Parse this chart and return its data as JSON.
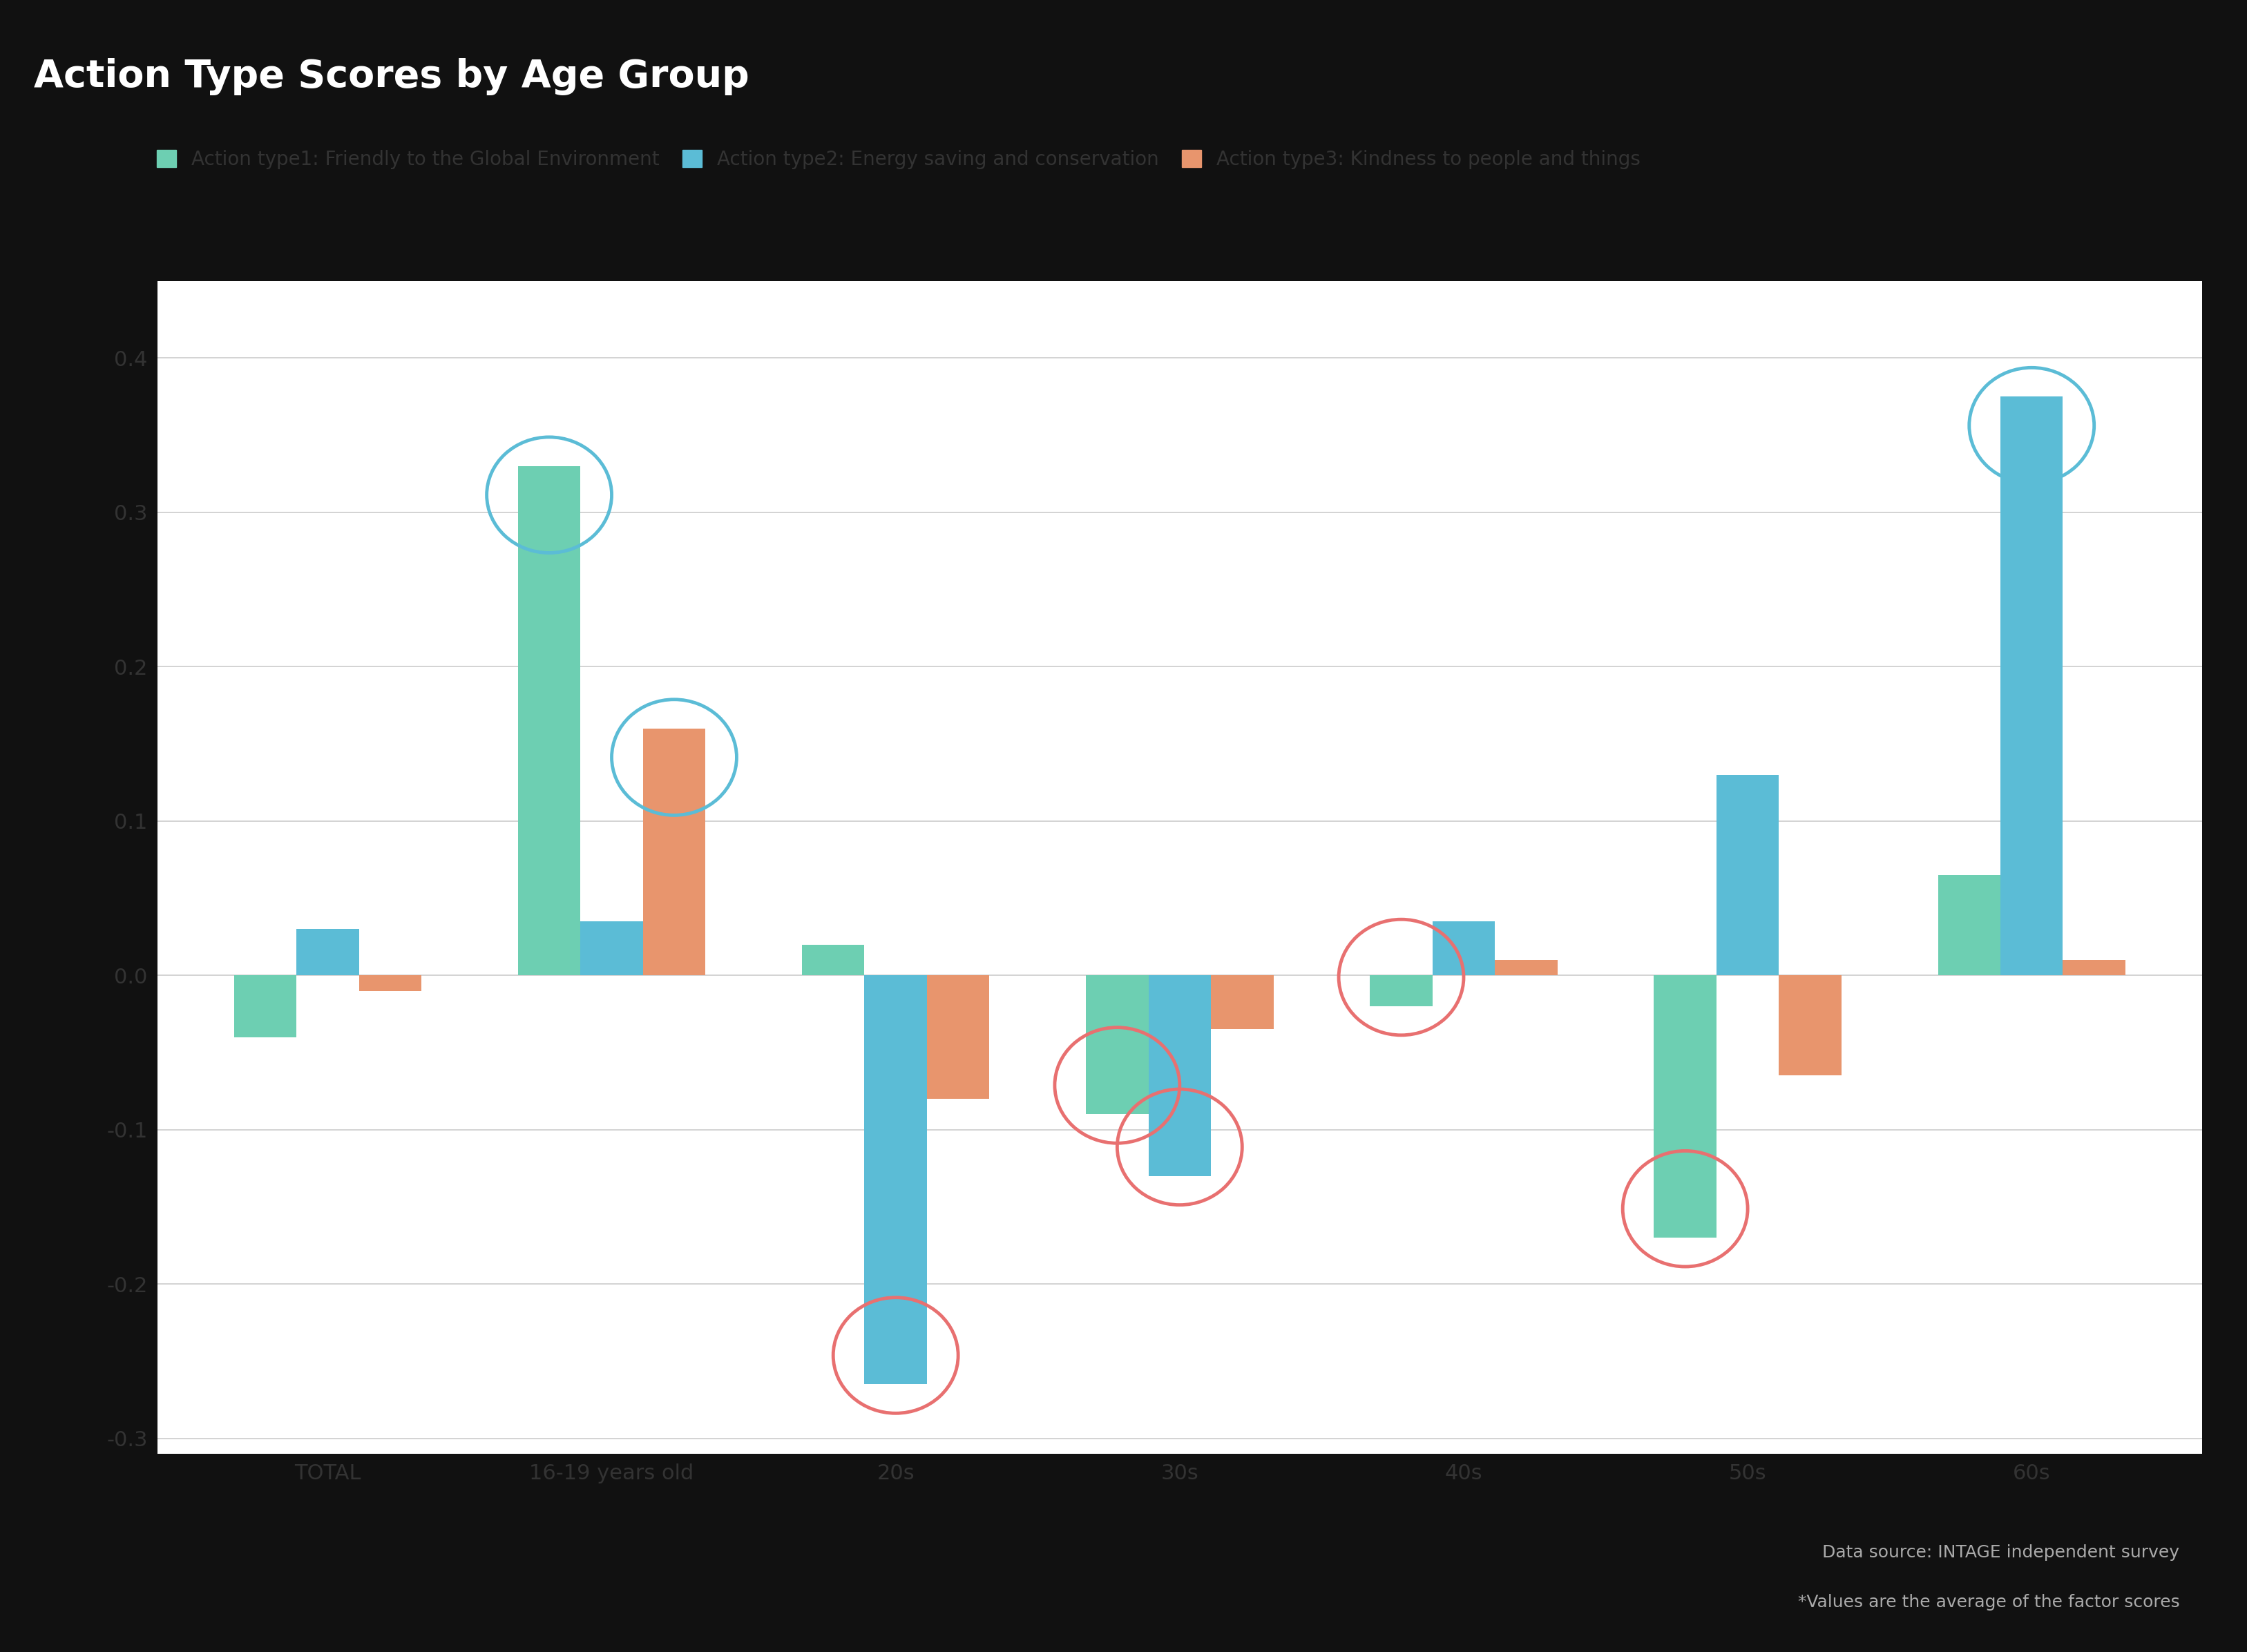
{
  "title": "Action Type Scores by Age Group",
  "title_bg_color": "#111111",
  "chart_bg_color": "#ffffff",
  "bottom_bg_color": "#111111",
  "categories": [
    "TOTAL",
    "16-19 years old",
    "20s",
    "30s",
    "40s",
    "50s",
    "60s"
  ],
  "series": {
    "type1": {
      "label": "Action type1: Friendly to the Global Environment",
      "color": "#6dcfb2",
      "values": [
        -0.04,
        0.33,
        0.02,
        -0.09,
        -0.02,
        -0.17,
        0.065
      ]
    },
    "type2": {
      "label": "Action type2: Energy saving and conservation",
      "color": "#5bbcd6",
      "values": [
        0.03,
        0.035,
        -0.265,
        -0.13,
        0.035,
        0.13,
        0.375
      ]
    },
    "type3": {
      "label": "Action type3: Kindness to people and things",
      "color": "#e8956d",
      "values": [
        -0.01,
        0.16,
        -0.08,
        -0.035,
        0.01,
        -0.065,
        0.01
      ]
    }
  },
  "circles": [
    {
      "series": "type1",
      "cat_idx": 1,
      "color": "#5bbcd6"
    },
    {
      "series": "type3",
      "cat_idx": 1,
      "color": "#5bbcd6"
    },
    {
      "series": "type2",
      "cat_idx": 2,
      "color": "#e87070"
    },
    {
      "series": "type1",
      "cat_idx": 3,
      "color": "#e87070"
    },
    {
      "series": "type2",
      "cat_idx": 3,
      "color": "#e87070"
    },
    {
      "series": "type1",
      "cat_idx": 4,
      "color": "#e87070"
    },
    {
      "series": "type1",
      "cat_idx": 5,
      "color": "#e87070"
    },
    {
      "series": "type2",
      "cat_idx": 6,
      "color": "#5bbcd6"
    }
  ],
  "ylim": [
    -0.31,
    0.45
  ],
  "yticks": [
    -0.3,
    -0.2,
    -0.1,
    0.0,
    0.1,
    0.2,
    0.3,
    0.4
  ],
  "ytick_labels": [
    "-0.3",
    "-0.2",
    "-0.1",
    "0.0",
    "0.1",
    "0.2",
    "0.3",
    "0.4"
  ],
  "footnote_line1": "Data source: INTAGE independent survey",
  "footnote_line2": "*Values are the average of the factor scores",
  "bar_width": 0.22,
  "grid_color": "#cccccc",
  "tick_fontsize": 22,
  "title_fontsize": 40,
  "legend_fontsize": 20,
  "footnote_fontsize": 18,
  "circle_linewidth": 3.5
}
